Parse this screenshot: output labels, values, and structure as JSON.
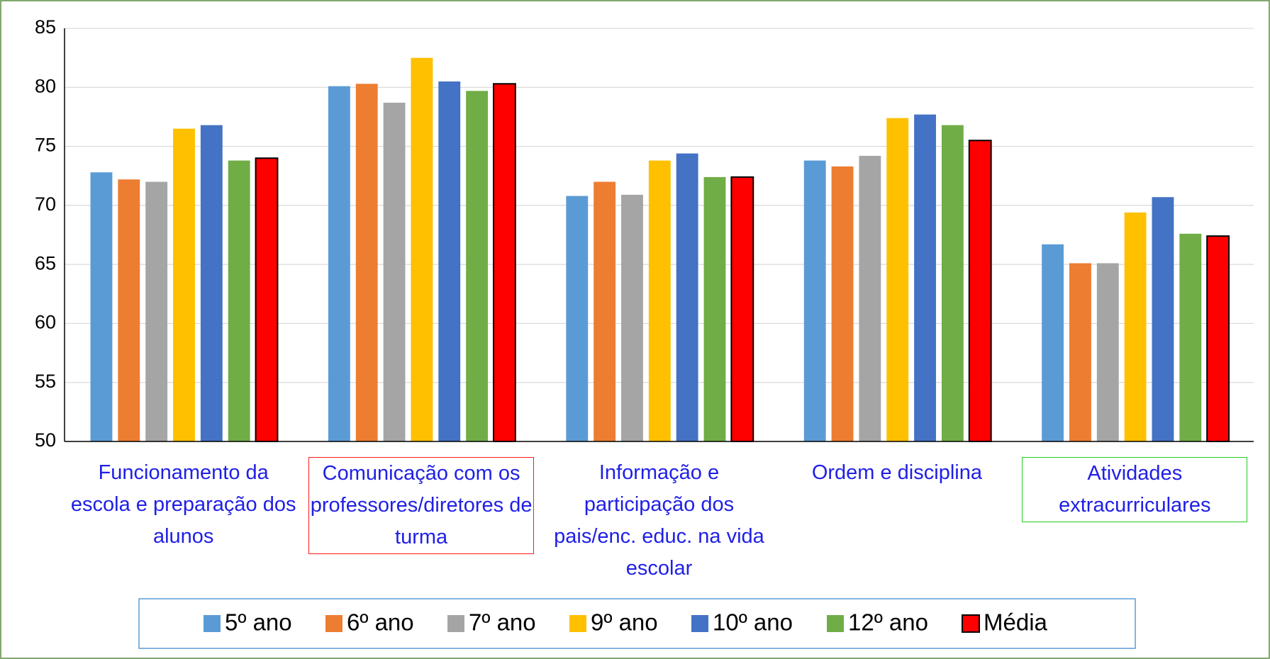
{
  "chart_data": {
    "type": "bar",
    "categories": [
      "Funcionamento da escola e preparação dos alunos",
      "Comunicação com os professores/diretores de turma",
      "Informação e participação dos pais/enc. educ. na vida escolar",
      "Ordem e disciplina",
      "Atividades extracurriculares"
    ],
    "series": [
      {
        "name": "5º ano",
        "color": "#5b9bd5",
        "values": [
          72.8,
          80.1,
          70.8,
          73.8,
          66.7
        ]
      },
      {
        "name": "6º ano",
        "color": "#ed7d31",
        "values": [
          72.2,
          80.3,
          72.0,
          73.3,
          65.1
        ]
      },
      {
        "name": "7º ano",
        "color": "#a5a5a5",
        "values": [
          72.0,
          78.7,
          70.9,
          74.2,
          65.1
        ]
      },
      {
        "name": "9º ano",
        "color": "#ffc000",
        "values": [
          76.5,
          82.5,
          73.8,
          77.4,
          69.4
        ]
      },
      {
        "name": "10º ano",
        "color": "#4472c4",
        "values": [
          76.8,
          80.5,
          74.4,
          77.7,
          70.7
        ]
      },
      {
        "name": "12º ano",
        "color": "#70ad47",
        "values": [
          73.8,
          79.7,
          72.4,
          76.8,
          67.6
        ]
      },
      {
        "name": "Média",
        "color": "#ff0000",
        "outline": "#000000",
        "values": [
          74.0,
          80.3,
          72.4,
          75.5,
          67.4
        ]
      }
    ],
    "ylim": [
      50,
      85
    ],
    "yticks": [
      50,
      55,
      60,
      65,
      70,
      75,
      80,
      85
    ],
    "grid": true,
    "legend": "bottom"
  }
}
